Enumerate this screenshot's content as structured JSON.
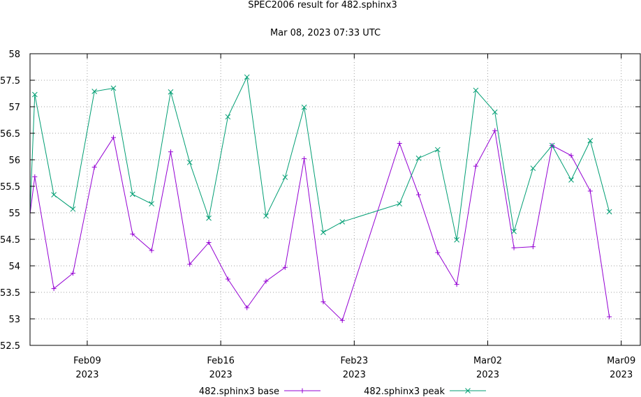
{
  "chart_data": {
    "type": "line",
    "title": "SPEC2006 result for 482.sphinx3",
    "subtitle": "Mar 08, 2023 07:33 UTC",
    "xlabel": "",
    "ylabel": "",
    "x_ticks": [
      {
        "date": "Feb09",
        "year": "2023"
      },
      {
        "date": "Feb16",
        "year": "2023"
      },
      {
        "date": "Feb23",
        "year": "2023"
      },
      {
        "date": "Mar02",
        "year": "2023"
      },
      {
        "date": "Mar09",
        "year": "2023"
      }
    ],
    "x_tick_dates": [
      "2023-02-09",
      "2023-02-16",
      "2023-02-23",
      "2023-03-02",
      "2023-03-09"
    ],
    "x_range": [
      "2023-02-06",
      "2023-03-10"
    ],
    "y_ticks": [
      "52.5",
      "53",
      "53.5",
      "54",
      "54.5",
      "55",
      "55.5",
      "56",
      "56.5",
      "57",
      "57.5",
      "58"
    ],
    "ylim": [
      52.5,
      58
    ],
    "grid": true,
    "legend_position": "bottom-center",
    "x": [
      "2023-02-06T00:00",
      "2023-02-06T06:00",
      "2023-02-07T06:00",
      "2023-02-08T06:00",
      "2023-02-09T09:00",
      "2023-02-10T09:00",
      "2023-02-11T09:00",
      "2023-02-12T09:00",
      "2023-02-13T09:00",
      "2023-02-14T09:00",
      "2023-02-15T09:00",
      "2023-02-16T09:00",
      "2023-02-17T09:00",
      "2023-02-18T09:00",
      "2023-02-19T09:00",
      "2023-02-20T09:00",
      "2023-02-21T09:00",
      "2023-02-22T09:00",
      "2023-02-25T09:00",
      "2023-02-26T09:00",
      "2023-02-27T09:00",
      "2023-02-28T09:00",
      "2023-03-01T09:00",
      "2023-03-02T09:00",
      "2023-03-03T09:00",
      "2023-03-04T09:00",
      "2023-03-05T09:00",
      "2023-03-06T09:00",
      "2023-03-07T09:00",
      "2023-03-08T09:00"
    ],
    "series": [
      {
        "name": "482.sphinx3 base",
        "color": "#9400d3",
        "marker": "+",
        "values": [
          54.98,
          55.68,
          53.57,
          53.86,
          55.86,
          56.42,
          54.6,
          54.29,
          56.15,
          54.03,
          54.44,
          53.75,
          53.21,
          53.71,
          53.97,
          56.02,
          53.32,
          52.97,
          56.31,
          55.34,
          54.25,
          53.65,
          55.88,
          56.55,
          54.34,
          54.36,
          56.27,
          56.08,
          55.41,
          53.04
        ]
      },
      {
        "name": "482.sphinx3 peak",
        "color": "#009e73",
        "marker": "x",
        "values": [
          55.0,
          57.23,
          55.34,
          55.07,
          57.29,
          57.35,
          55.35,
          55.17,
          57.28,
          55.95,
          54.9,
          56.81,
          57.56,
          54.94,
          55.67,
          56.99,
          54.63,
          54.83,
          55.17,
          56.03,
          56.19,
          54.49,
          57.31,
          56.9,
          54.65,
          55.84,
          56.27,
          55.62,
          56.36,
          55.02
        ]
      }
    ]
  }
}
